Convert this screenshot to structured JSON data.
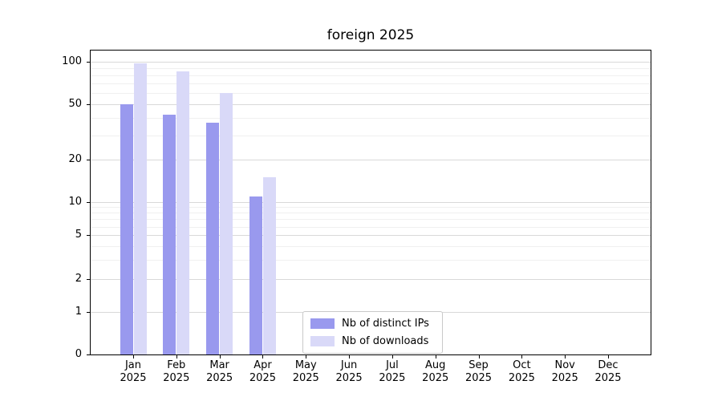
{
  "chart_data": {
    "type": "bar",
    "title": "foreign 2025",
    "categories": [
      "Jan",
      "Feb",
      "Mar",
      "Apr",
      "May",
      "Jun",
      "Jul",
      "Aug",
      "Sep",
      "Oct",
      "Nov",
      "Dec"
    ],
    "category_year": "2025",
    "series": [
      {
        "name": "Nb of distinct IPs",
        "color": "#9999ee",
        "values": [
          50,
          42,
          37,
          11,
          0,
          0,
          0,
          0,
          0,
          0,
          0,
          0
        ]
      },
      {
        "name": "Nb of downloads",
        "color": "#d9d9f8",
        "values": [
          97,
          85,
          60,
          15,
          0,
          0,
          0,
          0,
          0,
          0,
          0,
          0
        ]
      }
    ],
    "yscale": "symlog",
    "ylim": [
      0,
      125
    ],
    "yticks": [
      0,
      1,
      2,
      5,
      10,
      20,
      50,
      100
    ],
    "yticks_minor": [
      3,
      4,
      6,
      7,
      8,
      9,
      30,
      40,
      60,
      70,
      80,
      90
    ],
    "grid": true,
    "legend_position": "lower-center",
    "axis_color": "#000000",
    "grid_major_color": "#d9d9d9",
    "grid_minor_color": "#f0f0f0"
  }
}
